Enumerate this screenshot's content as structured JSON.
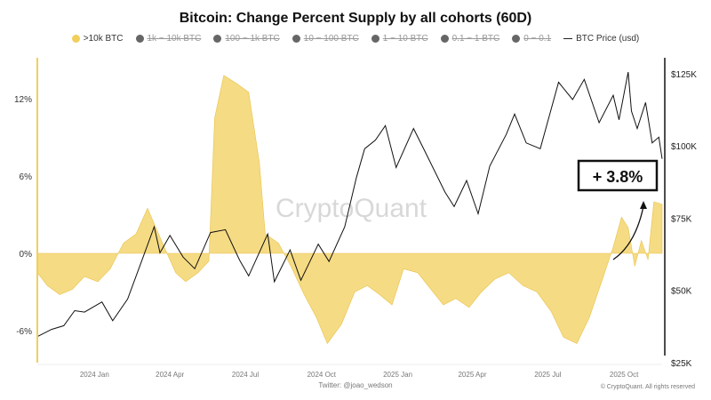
{
  "chart_data": {
    "type": "area",
    "title": "Bitcoin: Change Percent Supply by all cohorts (60D)",
    "legend": [
      {
        "label": ">10k BTC",
        "icon": "whale-icon",
        "color": "#f2cf5b",
        "active": true
      },
      {
        "label": "1k ~ 10k BTC",
        "icon": "shark-icon",
        "color": "#666666",
        "active": false
      },
      {
        "label": "100 ~ 1k BTC",
        "icon": "dolphin-icon",
        "color": "#666666",
        "active": false
      },
      {
        "label": "10 ~ 100 BTC",
        "icon": "fish-icon",
        "color": "#666666",
        "active": false
      },
      {
        "label": "1 ~ 10 BTC",
        "icon": "octopus-icon",
        "color": "#666666",
        "active": false
      },
      {
        "label": "0.1 ~ 1 BTC",
        "icon": "crab-icon",
        "color": "#666666",
        "active": false
      },
      {
        "label": "0 ~ 0.1",
        "icon": "shrimp-icon",
        "color": "#666666",
        "active": false
      },
      {
        "label": "BTC Price (usd)",
        "icon": "line",
        "color": "#111111",
        "active": true
      }
    ],
    "x_ticks": [
      "2024 Jan",
      "2024 Apr",
      "2024 Jul",
      "2024 Oct",
      "2025 Jan",
      "2025 Apr",
      "2025 Jul",
      "2025 Oct"
    ],
    "x_tick_dates": [
      "2024-01-01",
      "2024-04-01",
      "2024-07-01",
      "2024-10-01",
      "2025-01-01",
      "2025-04-01",
      "2025-07-01",
      "2025-10-01"
    ],
    "xlim": [
      "2023-10-24",
      "2025-11-16"
    ],
    "y_left": {
      "ticks": [
        12,
        6,
        0,
        -6
      ],
      "tick_labels": [
        "12%",
        "6%",
        "0%",
        "-6%"
      ],
      "lim": [
        -8.5,
        15.5
      ]
    },
    "y_right": {
      "ticks": [
        125000,
        100000,
        75000,
        50000,
        25000
      ],
      "tick_labels": [
        "$125K",
        "$100K",
        "$75K",
        "$50K",
        "$25K"
      ],
      "lim": [
        25000,
        128000
      ]
    },
    "series": [
      {
        "name": ">10k BTC",
        "color": "#f2cf5b",
        "axis": "left",
        "points": [
          [
            "2023-10-24",
            -1.5
          ],
          [
            "2023-11-05",
            -2.5
          ],
          [
            "2023-11-20",
            -3.2
          ],
          [
            "2023-12-05",
            -2.8
          ],
          [
            "2023-12-20",
            -1.8
          ],
          [
            "2024-01-05",
            -2.2
          ],
          [
            "2024-01-20",
            -1.2
          ],
          [
            "2024-02-05",
            0.8
          ],
          [
            "2024-02-20",
            1.5
          ],
          [
            "2024-03-05",
            3.5
          ],
          [
            "2024-03-15",
            2.0
          ],
          [
            "2024-03-25",
            0.5
          ],
          [
            "2024-04-08",
            -1.5
          ],
          [
            "2024-04-20",
            -2.2
          ],
          [
            "2024-05-05",
            -1.5
          ],
          [
            "2024-05-18",
            -0.6
          ],
          [
            "2024-05-25",
            10.5
          ],
          [
            "2024-06-05",
            13.8
          ],
          [
            "2024-06-20",
            13.2
          ],
          [
            "2024-07-05",
            12.5
          ],
          [
            "2024-07-18",
            7.0
          ],
          [
            "2024-07-25",
            1.5
          ],
          [
            "2024-08-10",
            0.8
          ],
          [
            "2024-08-25",
            -1.0
          ],
          [
            "2024-09-10",
            -3.2
          ],
          [
            "2024-09-25",
            -5.0
          ],
          [
            "2024-10-08",
            -7.0
          ],
          [
            "2024-10-25",
            -5.5
          ],
          [
            "2024-11-10",
            -3.0
          ],
          [
            "2024-11-25",
            -2.5
          ],
          [
            "2024-12-10",
            -3.2
          ],
          [
            "2024-12-25",
            -4.0
          ],
          [
            "2025-01-08",
            -1.2
          ],
          [
            "2025-01-25",
            -1.5
          ],
          [
            "2025-02-10",
            -2.8
          ],
          [
            "2025-02-25",
            -4.0
          ],
          [
            "2025-03-12",
            -3.5
          ],
          [
            "2025-03-28",
            -4.2
          ],
          [
            "2025-04-12",
            -3.0
          ],
          [
            "2025-04-28",
            -2.0
          ],
          [
            "2025-05-15",
            -1.5
          ],
          [
            "2025-06-01",
            -2.5
          ],
          [
            "2025-06-18",
            -3.0
          ],
          [
            "2025-07-05",
            -4.5
          ],
          [
            "2025-07-20",
            -6.5
          ],
          [
            "2025-08-05",
            -7.0
          ],
          [
            "2025-08-20",
            -5.0
          ],
          [
            "2025-09-05",
            -2.0
          ],
          [
            "2025-09-18",
            0.5
          ],
          [
            "2025-09-28",
            2.8
          ],
          [
            "2025-10-06",
            2.0
          ],
          [
            "2025-10-14",
            -1.0
          ],
          [
            "2025-10-22",
            1.0
          ],
          [
            "2025-10-30",
            -0.5
          ],
          [
            "2025-11-06",
            4.0
          ],
          [
            "2025-11-16",
            3.8
          ]
        ]
      },
      {
        "name": "BTC Price (usd)",
        "color": "#111111",
        "axis": "right",
        "points": [
          [
            "2023-10-24",
            34000
          ],
          [
            "2023-11-10",
            36500
          ],
          [
            "2023-11-25",
            37800
          ],
          [
            "2023-12-08",
            43000
          ],
          [
            "2023-12-20",
            42500
          ],
          [
            "2024-01-10",
            46000
          ],
          [
            "2024-01-23",
            39500
          ],
          [
            "2024-02-10",
            47000
          ],
          [
            "2024-02-28",
            61000
          ],
          [
            "2024-03-13",
            72000
          ],
          [
            "2024-03-20",
            63000
          ],
          [
            "2024-04-01",
            69000
          ],
          [
            "2024-04-17",
            61500
          ],
          [
            "2024-05-01",
            57500
          ],
          [
            "2024-05-20",
            70000
          ],
          [
            "2024-06-07",
            71000
          ],
          [
            "2024-06-24",
            60500
          ],
          [
            "2024-07-05",
            55000
          ],
          [
            "2024-07-28",
            69500
          ],
          [
            "2024-08-05",
            53000
          ],
          [
            "2024-08-24",
            64000
          ],
          [
            "2024-09-06",
            53500
          ],
          [
            "2024-09-27",
            66000
          ],
          [
            "2024-10-10",
            60000
          ],
          [
            "2024-10-29",
            72000
          ],
          [
            "2024-11-12",
            89000
          ],
          [
            "2024-11-22",
            99000
          ],
          [
            "2024-12-05",
            102000
          ],
          [
            "2024-12-17",
            107000
          ],
          [
            "2024-12-30",
            92500
          ],
          [
            "2025-01-20",
            106000
          ],
          [
            "2025-02-03",
            98000
          ],
          [
            "2025-02-27",
            84000
          ],
          [
            "2025-03-10",
            79000
          ],
          [
            "2025-03-25",
            88000
          ],
          [
            "2025-04-08",
            76500
          ],
          [
            "2025-04-22",
            93000
          ],
          [
            "2025-05-12",
            104000
          ],
          [
            "2025-05-22",
            111000
          ],
          [
            "2025-06-05",
            101000
          ],
          [
            "2025-06-22",
            99000
          ],
          [
            "2025-07-14",
            122000
          ],
          [
            "2025-07-31",
            116000
          ],
          [
            "2025-08-14",
            123000
          ],
          [
            "2025-09-01",
            108000
          ],
          [
            "2025-09-18",
            117500
          ],
          [
            "2025-09-25",
            109000
          ],
          [
            "2025-10-06",
            125500
          ],
          [
            "2025-10-10",
            112000
          ],
          [
            "2025-10-17",
            106000
          ],
          [
            "2025-10-27",
            115000
          ],
          [
            "2025-11-04",
            101000
          ],
          [
            "2025-11-12",
            103000
          ],
          [
            "2025-11-16",
            95500
          ]
        ]
      }
    ],
    "annotation": "+ 3.8%",
    "watermark": "CryptoQuant",
    "grid": false
  },
  "footer": {
    "credit": "Twitter: @joao_wedson",
    "copyright": "© CryptoQuant. All rights reserved"
  }
}
